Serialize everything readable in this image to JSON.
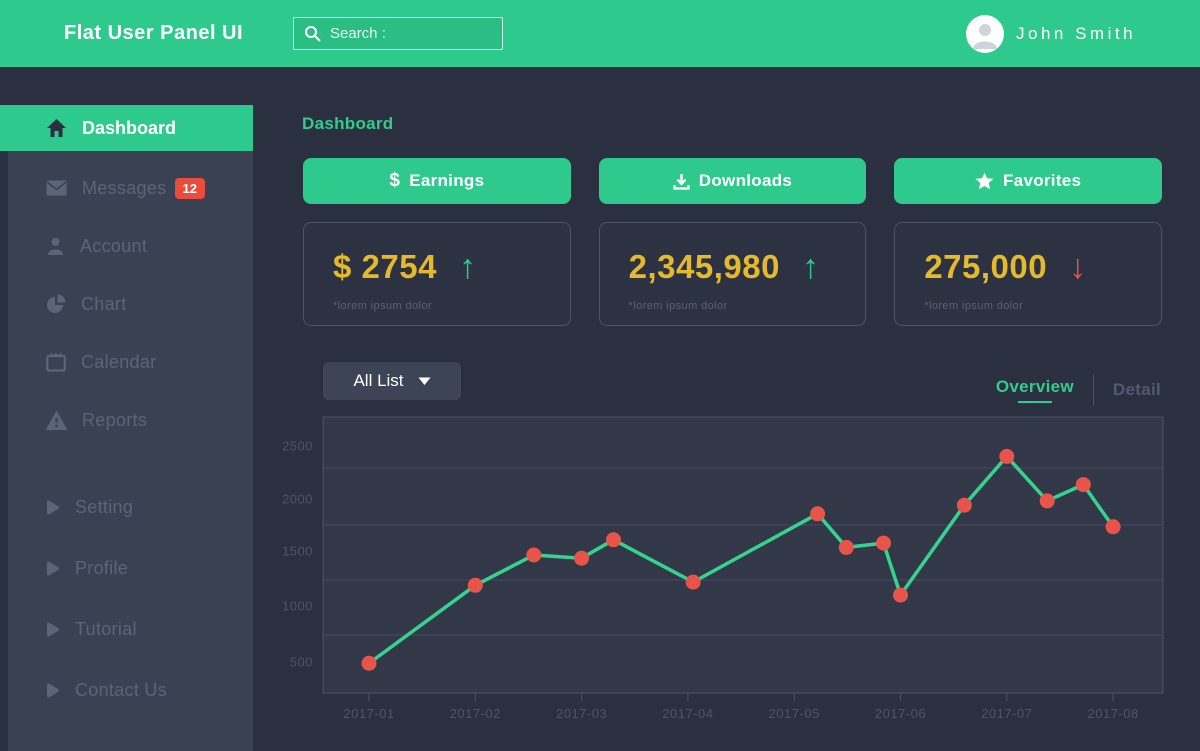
{
  "header": {
    "title": "Flat User Panel UI",
    "search_placeholder": "Search :",
    "user_name": "John Smith"
  },
  "sidebar": {
    "active_item": {
      "label": "Dashboard",
      "icon": "home-icon"
    },
    "items": [
      {
        "label": "Messages",
        "icon": "envelope-icon",
        "badge": "12"
      },
      {
        "label": "Account",
        "icon": "person-icon"
      },
      {
        "label": "Chart",
        "icon": "pie-chart-icon"
      },
      {
        "label": "Calendar",
        "icon": "calendar-icon"
      },
      {
        "label": "Reports",
        "icon": "warning-icon"
      }
    ],
    "secondary_items": [
      {
        "label": "Setting",
        "icon": "play-icon"
      },
      {
        "label": "Profile",
        "icon": "play-icon"
      },
      {
        "label": "Tutorial",
        "icon": "play-icon"
      },
      {
        "label": "Contact Us",
        "icon": "play-icon"
      }
    ]
  },
  "main": {
    "page_title": "Dashboard",
    "action_buttons": [
      {
        "label": "Earnings",
        "icon": "dollar-icon"
      },
      {
        "label": "Downloads",
        "icon": "download-icon"
      },
      {
        "label": "Favorites",
        "icon": "star-icon"
      }
    ],
    "stat_cards": [
      {
        "value": "$ 2754",
        "trend": "up",
        "note": "*lorem ipsum dolor"
      },
      {
        "value": "2,345,980",
        "trend": "up",
        "note": "*lorem ipsum dolor"
      },
      {
        "value": "275,000",
        "trend": "down",
        "note": "*lorem ipsum dolor"
      }
    ],
    "filter_dropdown_label": "All List",
    "view_tabs": [
      {
        "label": "Overview",
        "active": true
      },
      {
        "label": "Detail",
        "active": false
      }
    ]
  },
  "chart_data": {
    "type": "line",
    "title": "",
    "xlabel": "",
    "ylabel": "",
    "x_tick_labels": [
      "2017-01",
      "2017-02",
      "2017-03",
      "2017-04",
      "2017-05",
      "2017-06",
      "2017-07",
      "2017-08"
    ],
    "y_tick_labels": [
      "2500",
      "2000",
      "1500",
      "1000",
      "500"
    ],
    "x_unit": "month index, 2017-01 = 1",
    "grid": "horizontal only",
    "legend": "none",
    "points": [
      {
        "x": 1.0,
        "value": 500
      },
      {
        "x": 2.0,
        "value": 1220
      },
      {
        "x": 2.55,
        "value": 1500
      },
      {
        "x": 3.0,
        "value": 1470
      },
      {
        "x": 3.3,
        "value": 1640
      },
      {
        "x": 4.05,
        "value": 1250
      },
      {
        "x": 5.22,
        "value": 1880
      },
      {
        "x": 5.49,
        "value": 1570
      },
      {
        "x": 5.84,
        "value": 1610
      },
      {
        "x": 6.0,
        "value": 1130
      },
      {
        "x": 6.6,
        "value": 1960
      },
      {
        "x": 7.0,
        "value": 2410
      },
      {
        "x": 7.38,
        "value": 2000
      },
      {
        "x": 7.72,
        "value": 2150
      },
      {
        "x": 8.0,
        "value": 1760
      }
    ],
    "line_color": "#35d392",
    "point_color": "#e9544a",
    "grid_color": "#454d61",
    "axis_color": "#4b5266",
    "tick_label_color": "#4c5468",
    "plot_bg": "#323848"
  },
  "colors": {
    "brand_green": "#2ec98c",
    "green_text": "#33cb8e",
    "background": "#2b3040",
    "sidebar": "#3a4152",
    "gold_value": "#e5b92e",
    "red_trend": "#e8544b",
    "badge_red": "#e74c3c"
  }
}
